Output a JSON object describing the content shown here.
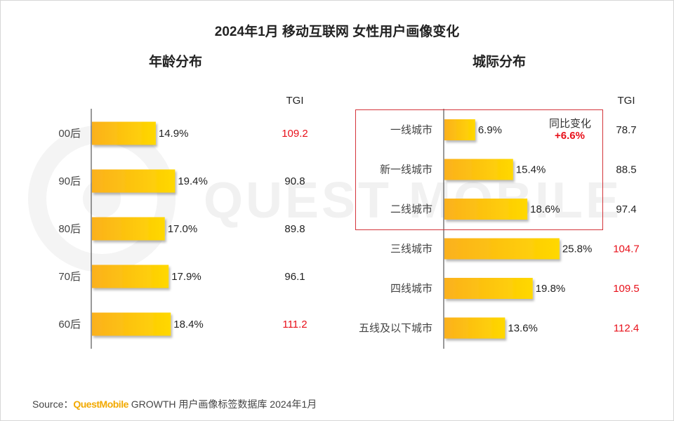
{
  "title": "2024年1月 移动互联网 女性用户画像变化",
  "watermark": "QUEST MOBILE",
  "colors": {
    "bar_start": "#fbb11d",
    "bar_end": "#ffd800",
    "tgi_high": "#e8101a",
    "tgi_normal": "#222222",
    "highlight_border": "#d4343a"
  },
  "chart_data": [
    {
      "type": "bar",
      "orientation": "horizontal",
      "title": "年龄分布",
      "categories": [
        "00后",
        "90后",
        "80后",
        "70后",
        "60后"
      ],
      "values": [
        14.9,
        19.4,
        17.0,
        17.9,
        18.4
      ],
      "value_labels": [
        "14.9%",
        "19.4%",
        "17.0%",
        "17.9%",
        "18.4%"
      ],
      "unit": "%",
      "xlim": [
        0,
        30
      ],
      "tgi_header": "TGI",
      "tgi": [
        109.2,
        90.8,
        89.8,
        96.1,
        111.2
      ],
      "tgi_labels": [
        "109.2",
        "90.8",
        "89.8",
        "96.1",
        "111.2"
      ],
      "tgi_highlight": [
        true,
        false,
        false,
        false,
        true
      ]
    },
    {
      "type": "bar",
      "orientation": "horizontal",
      "title": "城际分布",
      "categories": [
        "一线城市",
        "新一线城市",
        "二线城市",
        "三线城市",
        "四线城市",
        "五线及以下城市"
      ],
      "values": [
        6.9,
        15.4,
        18.6,
        25.8,
        19.8,
        13.6
      ],
      "value_labels": [
        "6.9%",
        "15.4%",
        "18.6%",
        "25.8%",
        "19.8%",
        "13.6%"
      ],
      "unit": "%",
      "xlim": [
        0,
        30
      ],
      "tgi_header": "TGI",
      "tgi": [
        78.7,
        88.5,
        97.4,
        104.7,
        109.5,
        112.4
      ],
      "tgi_labels": [
        "78.7",
        "88.5",
        "97.4",
        "104.7",
        "109.5",
        "112.4"
      ],
      "tgi_highlight": [
        false,
        false,
        false,
        true,
        true,
        true
      ],
      "annotation": {
        "label": "同比变化",
        "value": "+6.6%",
        "applies_to": [
          "一线城市",
          "新一线城市",
          "二线城市"
        ]
      }
    }
  ],
  "source": {
    "prefix": "Source：",
    "brand": "QuestMobile",
    "text": " GROWTH 用户画像标签数据库 2024年1月"
  }
}
